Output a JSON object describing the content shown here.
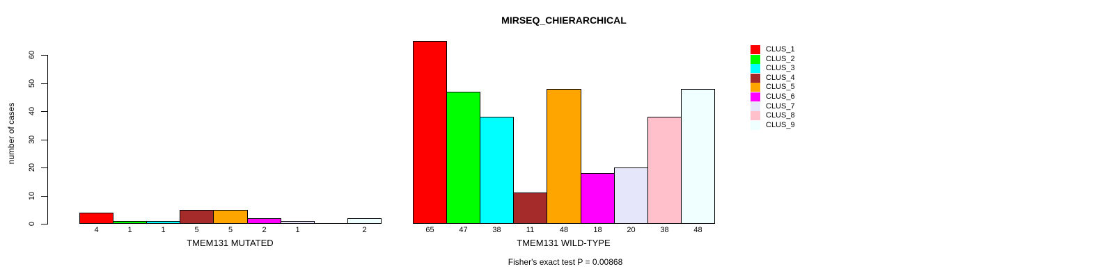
{
  "chart_data": {
    "type": "bar",
    "title": "MIRSEQ_CHIERARCHICAL",
    "ylabel": "number of cases",
    "ylim": [
      0,
      65
    ],
    "yticks": [
      0,
      10,
      20,
      30,
      40,
      50,
      60
    ],
    "grid": false,
    "colors": [
      "#FF0000",
      "#00FF00",
      "#00FFFF",
      "#A52A2A",
      "#FFA500",
      "#FF00FF",
      "#E6E6FA",
      "#FFC0CB",
      "#F0FFFF"
    ],
    "groups": [
      {
        "xlabel": "TMEM131 MUTATED",
        "values": [
          4,
          1,
          1,
          5,
          5,
          2,
          1,
          0,
          2
        ],
        "labels": [
          "4",
          "1",
          "1",
          "5",
          "5",
          "2",
          "1",
          "",
          "2"
        ]
      },
      {
        "xlabel": "TMEM131 WILD-TYPE",
        "values": [
          65,
          47,
          38,
          11,
          48,
          18,
          20,
          38,
          48
        ],
        "labels": [
          "65",
          "47",
          "38",
          "11",
          "48",
          "18",
          "20",
          "38",
          "48"
        ]
      }
    ],
    "legend": {
      "position": "right",
      "entries": [
        {
          "label": "CLUS_1",
          "color": "#FF0000"
        },
        {
          "label": "CLUS_2",
          "color": "#00FF00"
        },
        {
          "label": "CLUS_3",
          "color": "#00FFFF"
        },
        {
          "label": "CLUS_4",
          "color": "#A52A2A"
        },
        {
          "label": "CLUS_5",
          "color": "#FFA500"
        },
        {
          "label": "CLUS_6",
          "color": "#FF00FF"
        },
        {
          "label": "CLUS_7",
          "color": "#E6E6FA"
        },
        {
          "label": "CLUS_8",
          "color": "#FFC0CB"
        },
        {
          "label": "CLUS_9",
          "color": "#F0FFFF"
        }
      ]
    },
    "annotation": "Fisher's exact test P = 0.00868"
  }
}
